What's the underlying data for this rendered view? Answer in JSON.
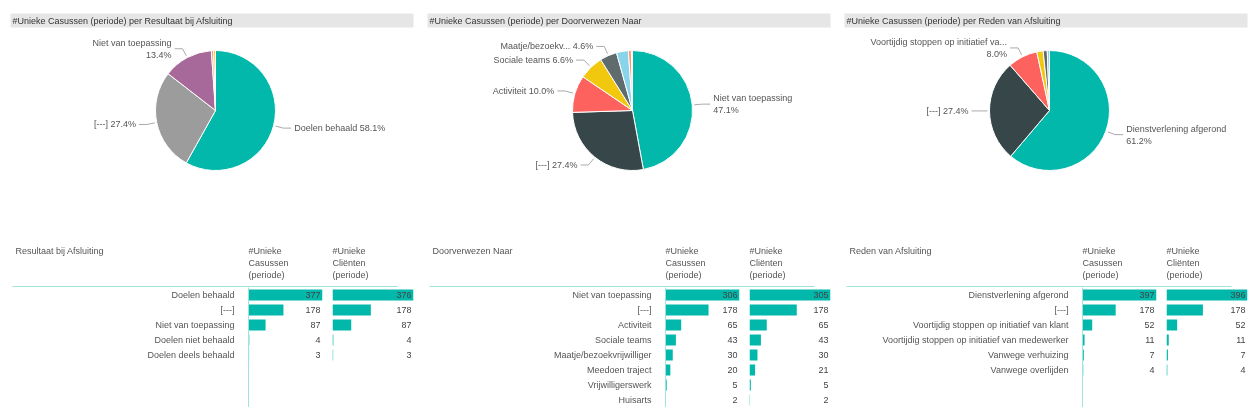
{
  "chart_data": [
    {
      "type": "pie",
      "title": "#Unieke Casussen (periode) per Resultaat bij Afsluiting",
      "categories": [
        null,
        null,
        null,
        null,
        null
      ],
      "values": [
        58.1,
        27.4,
        13.4,
        0.6,
        0.5
      ],
      "colors": [
        "#01b8aa",
        "#9c9c9c",
        "#a66999",
        "#fe9666",
        "#f2c80f"
      ],
      "value_labels": [
        "Doelen behaald 58.1%",
        "[---] 27.4%",
        "Niet van toepassing\n13.4%",
        null,
        null
      ]
    },
    {
      "type": "pie",
      "title": "#Unieke Casussen (periode) per Doorverwezen Naar",
      "categories": [
        null,
        null,
        null,
        null,
        null,
        null,
        null,
        null
      ],
      "values": [
        47.1,
        27.4,
        10.0,
        6.6,
        4.6,
        3.2,
        0.8,
        0.3
      ],
      "colors": [
        "#01b8aa",
        "#374649",
        "#fd625e",
        "#f2c80f",
        "#5f6b6d",
        "#8ad4eb",
        "#fe9666",
        "#a66999"
      ],
      "value_labels": [
        "Niet van toepassing\n47.1%",
        "[---] 27.4%",
        "Activiteit 10.0%",
        "Sociale teams 6.6%",
        "Maatje/bezoekv... 4.6%",
        null,
        null,
        null
      ]
    },
    {
      "type": "pie",
      "title": "#Unieke Casussen (periode) per Reden van Afsluiting",
      "categories": [
        null,
        null,
        null,
        null,
        null,
        null
      ],
      "values": [
        61.2,
        27.4,
        8.0,
        1.7,
        1.1,
        0.6
      ],
      "colors": [
        "#01b8aa",
        "#374649",
        "#fd625e",
        "#f2c80f",
        "#5f6b6d",
        "#8ad4eb"
      ],
      "value_labels": [
        "Dienstverlening afgerond\n61.2%",
        "[---] 27.4%",
        "Voortijdig stoppen op initiatief va...\n8.0%",
        null,
        null,
        null
      ]
    },
    {
      "type": "bar",
      "orientation": "horizontal",
      "ylabel": "Resultaat bij Afsluiting",
      "tick_labels": "y",
      "categories": [
        "Doelen behaald",
        "[---]",
        "Niet van toepassing",
        "Doelen niet behaald",
        "Doelen deels behaald"
      ],
      "data_labels": true,
      "series": [
        {
          "name": "#Unieke\nCasussen\n(periode)",
          "color": "#01b8aa",
          "values": [
            377,
            178,
            87,
            4,
            3
          ]
        }
      ]
    },
    {
      "type": "bar",
      "orientation": "horizontal",
      "tick_labels": false,
      "categories": [
        null,
        null,
        null,
        null,
        null
      ],
      "data_labels": true,
      "series": [
        {
          "name": "#Unieke\nCliënten\n(periode)",
          "color": "#01b8aa",
          "values": [
            376,
            178,
            87,
            4,
            3
          ]
        }
      ]
    },
    {
      "type": "bar",
      "orientation": "horizontal",
      "ylabel": "Doorverwezen Naar",
      "tick_labels": "y",
      "categories": [
        "Niet van toepassing",
        "[---]",
        "Activiteit",
        "Sociale teams",
        "Maatje/bezoekvrijwilliger",
        "Meedoen traject",
        "Vrijwilligerswerk",
        "Huisarts"
      ],
      "data_labels": true,
      "series": [
        {
          "name": "#Unieke\nCasussen\n(periode)",
          "color": "#01b8aa",
          "values": [
            306,
            178,
            65,
            43,
            30,
            20,
            5,
            2
          ]
        }
      ]
    },
    {
      "type": "bar",
      "orientation": "horizontal",
      "tick_labels": false,
      "categories": [
        null,
        null,
        null,
        null,
        null,
        null,
        null,
        null
      ],
      "data_labels": true,
      "series": [
        {
          "name": "#Unieke\nCliënten\n(periode)",
          "color": "#01b8aa",
          "values": [
            305,
            178,
            65,
            43,
            30,
            21,
            5,
            2
          ]
        }
      ]
    },
    {
      "type": "bar",
      "orientation": "horizontal",
      "ylabel": "Reden van Afsluiting",
      "tick_labels": "y",
      "categories": [
        "Dienstverlening afgerond",
        "[---]",
        "Voortijdig stoppen op initiatief van klant",
        "Voortijdig stoppen op initiatief van medewerker",
        "Vanwege verhuizing",
        "Vanwege overlijden"
      ],
      "data_labels": true,
      "series": [
        {
          "name": "#Unieke\nCasussen\n(periode)",
          "color": "#01b8aa",
          "values": [
            397,
            178,
            52,
            11,
            7,
            4
          ]
        }
      ]
    },
    {
      "type": "bar",
      "orientation": "horizontal",
      "tick_labels": false,
      "categories": [
        null,
        null,
        null,
        null,
        null,
        null
      ],
      "data_labels": true,
      "series": [
        {
          "name": "#Unieke\nCliënten\n(periode)",
          "color": "#01b8aa",
          "values": [
            396,
            178,
            52,
            11,
            7,
            4
          ]
        }
      ]
    }
  ]
}
